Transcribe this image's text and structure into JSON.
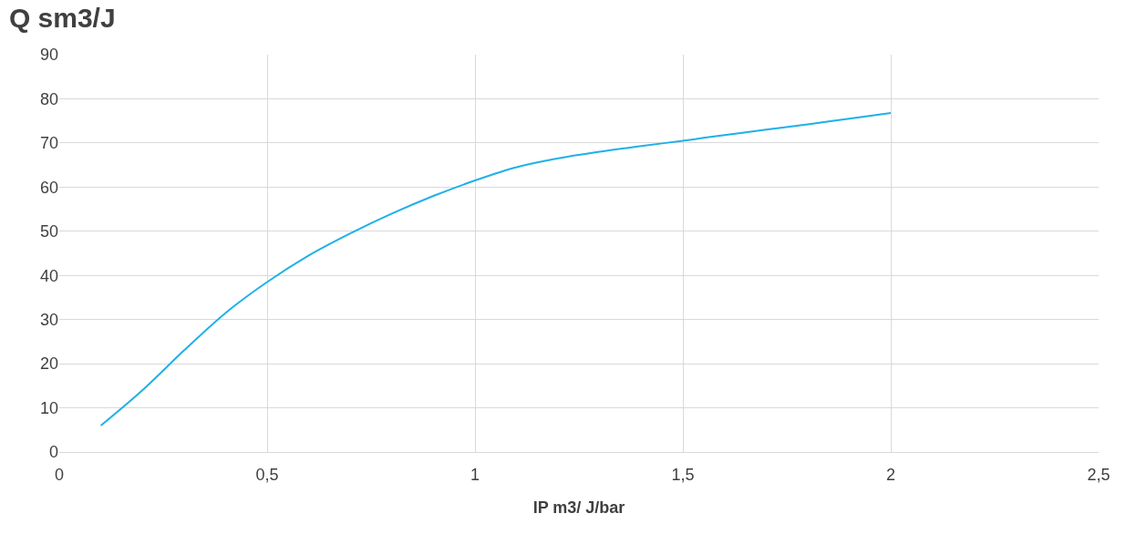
{
  "chart_data": {
    "type": "line",
    "title": "Q sm3/J",
    "xlabel": "IP m3/ J/bar",
    "x": [
      0.1,
      0.2,
      0.3,
      0.4,
      0.5,
      0.6,
      0.7,
      0.8,
      0.9,
      1.0,
      1.1,
      1.2,
      1.3,
      1.4,
      1.5,
      1.6,
      1.7,
      1.8,
      1.9,
      2.0
    ],
    "series": [
      {
        "color": "#1fb0e8",
        "values": [
          6,
          14,
          23,
          31.5,
          38.5,
          44.5,
          49.5,
          54,
          58,
          61.5,
          64.5,
          66.5,
          68,
          69.3,
          70.5,
          71.8,
          73,
          74.2,
          75.5,
          76.8
        ]
      }
    ],
    "xlim": [
      0,
      2.5
    ],
    "xticks": [
      0,
      {
        "value": 0.5,
        "label": "0,5"
      },
      1,
      {
        "value": 1.5,
        "label": "1,5"
      },
      2,
      {
        "value": 2.5,
        "label": "2,5"
      }
    ],
    "ylim": [
      0,
      90
    ],
    "yticks": [
      0,
      10,
      20,
      30,
      40,
      50,
      60,
      70,
      80,
      90
    ],
    "grid": true,
    "marker": "none",
    "line_style": "solid"
  }
}
